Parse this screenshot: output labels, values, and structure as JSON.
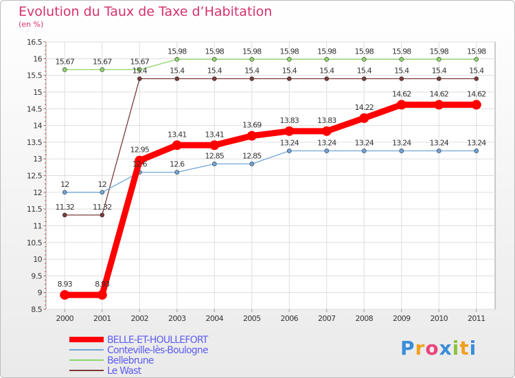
{
  "chart_data": {
    "type": "line",
    "title": "Evolution du Taux de Taxe d’Habitation",
    "ylabel": "(en %)",
    "xlabel": "",
    "categories": [
      "2000",
      "2001",
      "2002",
      "2003",
      "2004",
      "2005",
      "2006",
      "2007",
      "2008",
      "2009",
      "2010",
      "2011"
    ],
    "ylim": [
      8.5,
      16.5
    ],
    "yticks": [
      8.5,
      9,
      9.5,
      10,
      10.5,
      11,
      11.5,
      12,
      12.5,
      13,
      13.5,
      14,
      14.5,
      15,
      15.5,
      16,
      16.5
    ],
    "grid": true,
    "legend_position": "bottom-left",
    "series": [
      {
        "name": "BELLE-ET-HOULLEFORT",
        "color": "#ff0000",
        "values": [
          8.93,
          8.93,
          12.95,
          13.41,
          13.41,
          13.69,
          13.83,
          13.83,
          14.22,
          14.62,
          14.62,
          14.62
        ]
      },
      {
        "name": "Conteville-lès-Boulogne",
        "color": "#6fa5d7",
        "values": [
          12,
          12,
          12.6,
          12.6,
          12.85,
          12.85,
          13.24,
          13.24,
          13.24,
          13.24,
          13.24,
          13.24
        ]
      },
      {
        "name": "Bellebrune",
        "color": "#8dd66a",
        "values": [
          15.67,
          15.67,
          15.67,
          15.98,
          15.98,
          15.98,
          15.98,
          15.98,
          15.98,
          15.98,
          15.98,
          15.98
        ]
      },
      {
        "name": "Le Wast",
        "color": "#7a3a3a",
        "values": [
          11.32,
          11.32,
          15.4,
          15.4,
          15.4,
          15.4,
          15.4,
          15.4,
          15.4,
          15.4,
          15.4,
          15.4
        ]
      }
    ],
    "data_labels": [
      [
        "8.93",
        "8.93",
        "12.95",
        "13.41",
        "13.41",
        "13.69",
        "13.83",
        "13.83",
        "14.22",
        "14.62",
        "14.62",
        "14.62"
      ],
      [
        "12",
        "12",
        "12.6",
        "12.6",
        "12.85",
        "12.85",
        "13.24",
        "13.24",
        "13.24",
        "13.24",
        "13.24",
        "13.24"
      ],
      [
        "15.67",
        "15.67",
        "15.67",
        "15.98",
        "15.98",
        "15.98",
        "15.98",
        "15.98",
        "15.98",
        "15.98",
        "15.98",
        "15.98"
      ],
      [
        "11.32",
        "11.32",
        "15.4",
        "15.4",
        "15.4",
        "15.4",
        "15.4",
        "15.4",
        "15.4",
        "15.4",
        "15.4",
        "15.4"
      ]
    ]
  },
  "logo": {
    "letters": [
      "P",
      "r",
      "o",
      "x",
      "i",
      "t",
      "i"
    ],
    "colors": [
      "#3a8ed8",
      "#f0a020",
      "#e8457a",
      "#3a8ed8",
      "#8ac440",
      "#f0a020",
      "#3a8ed8"
    ]
  }
}
